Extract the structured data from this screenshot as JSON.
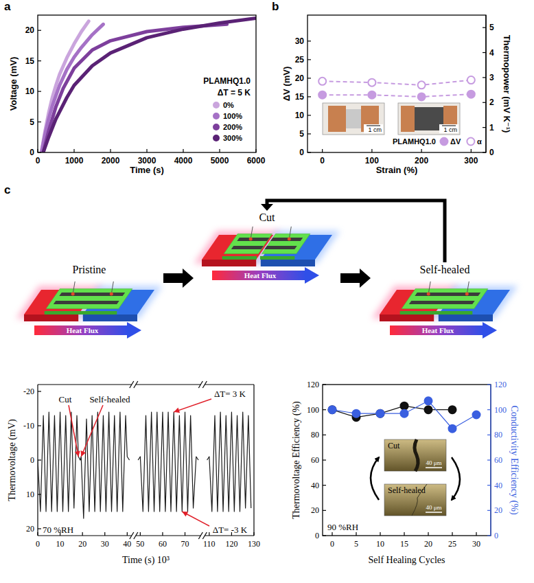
{
  "chart_data": [
    {
      "label": "a",
      "type": "line",
      "xlabel": "Time (s)",
      "ylabel": "Voltage (mV)",
      "xlim": [
        0,
        6000
      ],
      "xticks": [
        0,
        1000,
        2000,
        3000,
        4000,
        5000,
        6000
      ],
      "ylim": [
        0,
        22.5
      ],
      "yticks": [
        0,
        5,
        10,
        15,
        20
      ],
      "line_style": "solid",
      "legend": "lower right",
      "annotations": [
        "PLAMHQ1.0",
        "ΔT = 5 K"
      ],
      "series": [
        {
          "name": "0%",
          "color": "#caa5dd",
          "x": [
            100,
            200,
            300,
            400,
            500,
            600,
            800,
            1000,
            1200,
            1400
          ],
          "values": [
            0,
            3.5,
            6.5,
            9,
            11,
            12.8,
            15.5,
            17.8,
            19.8,
            21.5
          ]
        },
        {
          "name": "100%",
          "color": "#a571c6",
          "x": [
            100,
            200,
            300,
            400,
            600,
            800,
            1000,
            1200,
            1500,
            1800
          ],
          "values": [
            0,
            3,
            5.5,
            7.6,
            11,
            13.6,
            15.6,
            17.2,
            19.3,
            21
          ]
        },
        {
          "name": "200%",
          "color": "#7d3f9c",
          "x": [
            150,
            300,
            500,
            700,
            1000,
            1500,
            2000,
            3000,
            4000,
            5200
          ],
          "values": [
            0,
            3.5,
            7.5,
            10.5,
            13.8,
            16.8,
            18.3,
            19.8,
            20.5,
            21
          ]
        },
        {
          "name": "300%",
          "color": "#5a2275",
          "x": [
            150,
            300,
            500,
            800,
            1000,
            1500,
            2000,
            3000,
            4000,
            5000,
            6000
          ],
          "values": [
            0,
            2.5,
            5.5,
            9,
            11,
            14.2,
            16.3,
            18.8,
            20.2,
            21.2,
            22
          ]
        }
      ]
    },
    {
      "label": "b",
      "type": "line",
      "xlabel": "Strain (%)",
      "ylabel": "ΔV (mV)",
      "y2label": "Thermopower (mV K⁻¹)",
      "xlim": [
        -30,
        330
      ],
      "xticks": [
        0,
        100,
        200,
        300
      ],
      "ylim": [
        0,
        37
      ],
      "yticks": [
        0,
        5,
        10,
        15,
        20,
        25,
        30
      ],
      "y2lim": [
        0,
        5.5
      ],
      "y2ticks": [
        0,
        1,
        2,
        3,
        4,
        5
      ],
      "line_style": "dashed",
      "legend": "lower right",
      "annotations": [
        "PLAMHQ1.0"
      ],
      "insets": [
        {
          "scale": "1 cm"
        },
        {
          "scale": "1 cm"
        }
      ],
      "x": [
        0,
        100,
        200,
        300
      ],
      "series": [
        {
          "name": "ΔV",
          "color": "#c69be0",
          "marker": "circle",
          "values": [
            15.5,
            15.5,
            15.0,
            15.7
          ]
        },
        {
          "name": "α",
          "color": "#c69be0",
          "marker": "open_circle",
          "axis": "y2",
          "values": [
            2.85,
            2.8,
            2.7,
            2.9
          ]
        }
      ]
    },
    {
      "type": "line",
      "xlabel": "Time (s) 10³",
      "ylabel": "Thermovoltage (mV)",
      "xlim": [
        [
          0,
          42
        ],
        [
          48,
          77
        ],
        [
          108,
          130
        ]
      ],
      "xticks": [
        0,
        10,
        20,
        30,
        40,
        50,
        60,
        70,
        110,
        120,
        130
      ],
      "ylim": [
        22,
        -22
      ],
      "yticks": [
        -20,
        -10,
        0,
        10,
        20
      ],
      "color": "#1a1a1a",
      "line_style": "solid",
      "x": [
        0,
        1.2,
        2.5,
        3.7,
        5.0,
        6.2,
        7.5,
        8.7,
        10.0,
        11.2,
        12.5,
        13.7,
        15.0,
        16.2,
        17.5,
        18.2,
        19.0,
        19.4,
        20.5,
        21.8,
        23.0,
        24.3,
        25.5,
        26.8,
        28.0,
        29.3,
        30.5,
        31.8,
        33.0,
        34.3,
        35.5,
        36.8,
        38.0,
        39.3,
        40.0,
        41.0,
        45,
        49,
        50.0,
        51.2,
        52.5,
        53.7,
        55.0,
        56.2,
        57.5,
        58.7,
        60.0,
        61.2,
        62.5,
        63.7,
        65.0,
        66.2,
        67.5,
        68.7,
        70.0,
        71.2,
        72.5,
        73.7,
        75.0,
        76.0,
        90,
        109,
        110.0,
        111.2,
        112.5,
        113.7,
        115.0,
        116.2,
        117.5,
        118.7,
        120.0,
        121.2,
        122.5,
        123.7,
        125.0,
        126.2,
        127.5,
        128.7
      ],
      "values": [
        0,
        15,
        -13,
        15,
        -14,
        15,
        -13,
        15,
        -14,
        15,
        -13,
        15,
        -14,
        14,
        -13,
        -1,
        0,
        -1,
        17,
        -12,
        15,
        -13,
        15,
        -14,
        15,
        -13,
        15,
        -14,
        15,
        -13,
        15,
        -14,
        15,
        -13,
        -1,
        0,
        null,
        0,
        -1,
        15,
        -13,
        15,
        -14,
        15,
        -14,
        15,
        -14,
        15,
        -14,
        15,
        -14,
        15,
        -13,
        15,
        -14,
        15,
        -13,
        14,
        -1,
        0,
        null,
        0,
        -1,
        15,
        -13,
        15,
        -14,
        15,
        -13,
        15,
        -14,
        15,
        -13,
        15,
        -14,
        14,
        -13,
        14
      ],
      "annotations": [
        {
          "text": "Cut",
          "x": 18.2,
          "y": -1
        },
        {
          "text": "Self-healed",
          "x": 19.4,
          "y": -1
        },
        {
          "text": "ΔT= 3 K",
          "x": 65.0,
          "y": -14
        },
        {
          "text": "ΔT= -3 K",
          "x": 68.7,
          "y": 15
        },
        {
          "text": "70 %RH"
        }
      ]
    },
    {
      "type": "line",
      "xlabel": "Self Healing Cycles",
      "ylabel": "Thermovoltage Efficiency (%)",
      "y2label": "Conductivity Efficiency (%)",
      "xlim": [
        -2,
        33
      ],
      "xticks": [
        0,
        5,
        10,
        15,
        20,
        25,
        30
      ],
      "ylim": [
        0,
        120
      ],
      "yticks": [
        0,
        20,
        40,
        60,
        80,
        100,
        120
      ],
      "y2lim": [
        0,
        120
      ],
      "y2ticks": [
        0,
        20,
        40,
        60,
        80,
        100,
        120
      ],
      "x": [
        0,
        5,
        10,
        15,
        20,
        25,
        30
      ],
      "series": [
        {
          "color": "#111111",
          "marker": "circle",
          "values": [
            100,
            94,
            97,
            103,
            100,
            100,
            null
          ]
        },
        {
          "color": "#3a5fe0",
          "marker": "circle",
          "axis": "y2",
          "values": [
            100,
            97,
            97,
            97,
            107,
            85,
            96
          ]
        }
      ],
      "annotations": [
        "90 %RH"
      ],
      "insets": [
        {
          "label": "Cut",
          "scale": "40 μm"
        },
        {
          "label": "Self-healed",
          "scale": "40 μm"
        }
      ]
    }
  ],
  "diagram": {
    "label": "c",
    "stages": [
      "Pristine",
      "Cut",
      "Self-healed"
    ],
    "heat_flux": "Heat Flux"
  }
}
